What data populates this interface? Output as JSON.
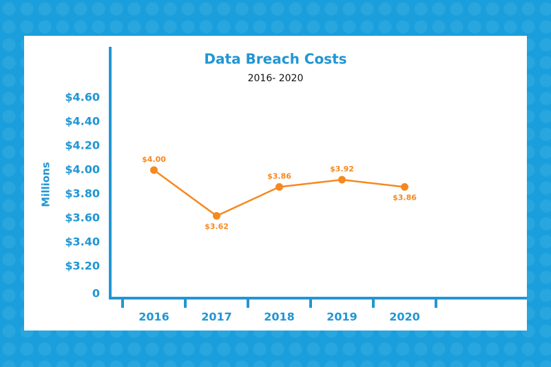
{
  "chart_data": {
    "type": "line",
    "title": "Data Breach Costs",
    "subtitle": "2016- 2020",
    "y_label": "Millions",
    "categories": [
      "2016",
      "2017",
      "2018",
      "2019",
      "2020"
    ],
    "series": [
      {
        "name": "Data Breach Costs",
        "color": "#f5891f",
        "values": [
          4.0,
          3.62,
          3.86,
          3.92,
          3.86
        ],
        "value_labels": [
          "$4.00",
          "$3.62",
          "$3.86",
          "$3.92",
          "$3.86"
        ]
      }
    ],
    "ylim": [
      3.0,
      5.0
    ],
    "yticks": [
      0,
      {
        "value": 3.2,
        "label": "$3.20"
      },
      {
        "value": 3.4,
        "label": "$3.40"
      },
      {
        "value": 3.6,
        "label": "$3.60"
      },
      {
        "value": 3.8,
        "label": "$3.80"
      },
      {
        "value": 4.0,
        "label": "$4.00"
      },
      {
        "value": 4.2,
        "label": "$4.20"
      },
      {
        "value": 4.4,
        "label": "$4.40"
      },
      {
        "value": 4.6,
        "label": "$4.60"
      }
    ],
    "axis_color": "#2196d3",
    "grid": false
  }
}
